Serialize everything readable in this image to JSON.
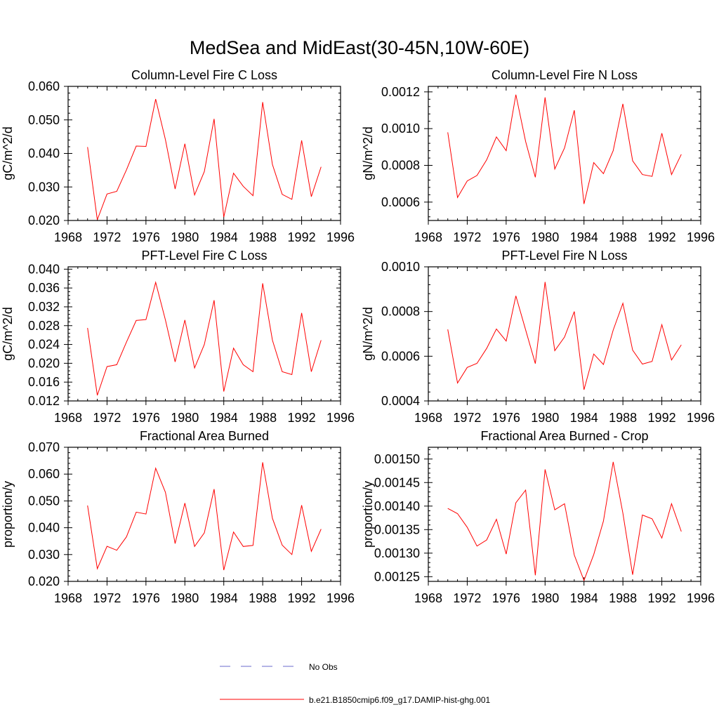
{
  "figure": {
    "title": "MedSea and MidEast(30-45N,10W-60E)"
  },
  "legend": {
    "items": [
      {
        "label": "No Obs",
        "color": "#6a6acd",
        "style": "dashed"
      },
      {
        "label": "b.e21.B1850cmip6.f09_g17.DAMIP-hist-ghg.001",
        "color": "#ff0000",
        "style": "solid"
      }
    ]
  },
  "chart_data": [
    {
      "type": "line",
      "title": "Column-Level Fire C Loss",
      "ylabel": "gC/m^2/d",
      "xlim": [
        1968,
        1996
      ],
      "xticks": [
        "1968",
        "1972",
        "1976",
        "1980",
        "1984",
        "1988",
        "1992",
        "1996"
      ],
      "ylim": [
        0.02,
        0.06
      ],
      "yticks": [
        "0.020",
        "0.030",
        "0.040",
        "0.050",
        "0.060"
      ],
      "x": [
        1970,
        1971,
        1972,
        1973,
        1974,
        1975,
        1976,
        1977,
        1978,
        1979,
        1980,
        1981,
        1982,
        1983,
        1984,
        1985,
        1986,
        1987,
        1988,
        1989,
        1990,
        1991,
        1992,
        1993,
        1994
      ],
      "series": [
        {
          "color": "#ff0000",
          "values": [
            0.0419,
            0.0202,
            0.0279,
            0.0287,
            0.0351,
            0.0422,
            0.0421,
            0.0562,
            0.0441,
            0.0294,
            0.0429,
            0.0276,
            0.0346,
            0.0503,
            0.021,
            0.0341,
            0.0302,
            0.0274,
            0.0553,
            0.0367,
            0.0278,
            0.0263,
            0.0439,
            0.0271,
            0.036
          ]
        }
      ]
    },
    {
      "type": "line",
      "title": "Column-Level Fire N Loss",
      "ylabel": "gN/m^2/d",
      "xlim": [
        1968,
        1996
      ],
      "xticks": [
        "1968",
        "1972",
        "1976",
        "1980",
        "1984",
        "1988",
        "1992",
        "1996"
      ],
      "ylim": [
        0.0005,
        0.00123
      ],
      "yticks": [
        "0.0006",
        "0.0008",
        "0.0010",
        "0.0012"
      ],
      "x": [
        1970,
        1971,
        1972,
        1973,
        1974,
        1975,
        1976,
        1977,
        1978,
        1979,
        1980,
        1981,
        1982,
        1983,
        1984,
        1985,
        1986,
        1987,
        1988,
        1989,
        1990,
        1991,
        1992,
        1993,
        1994
      ],
      "series": [
        {
          "color": "#ff0000",
          "values": [
            0.00098,
            0.000625,
            0.000715,
            0.000745,
            0.00083,
            0.000955,
            0.00088,
            0.001185,
            0.00093,
            0.000735,
            0.00117,
            0.00078,
            0.000895,
            0.0011,
            0.00059,
            0.000815,
            0.000755,
            0.00088,
            0.001135,
            0.000825,
            0.00075,
            0.00074,
            0.000975,
            0.00075,
            0.00086
          ]
        }
      ]
    },
    {
      "type": "line",
      "title": "PFT-Level Fire C Loss",
      "ylabel": "gC/m^2/d",
      "xlim": [
        1968,
        1996
      ],
      "xticks": [
        "1968",
        "1972",
        "1976",
        "1980",
        "1984",
        "1988",
        "1992",
        "1996"
      ],
      "ylim": [
        0.012,
        0.0405
      ],
      "yticks": [
        "0.012",
        "0.016",
        "0.020",
        "0.024",
        "0.028",
        "0.032",
        "0.036",
        "0.040"
      ],
      "x": [
        1970,
        1971,
        1972,
        1973,
        1974,
        1975,
        1976,
        1977,
        1978,
        1979,
        1980,
        1981,
        1982,
        1983,
        1984,
        1985,
        1986,
        1987,
        1988,
        1989,
        1990,
        1991,
        1992,
        1993,
        1994
      ],
      "series": [
        {
          "color": "#ff0000",
          "values": [
            0.0275,
            0.0132,
            0.0193,
            0.0197,
            0.0245,
            0.0291,
            0.0293,
            0.0372,
            0.0292,
            0.0203,
            0.0292,
            0.019,
            0.024,
            0.0334,
            0.014,
            0.0232,
            0.0197,
            0.0182,
            0.037,
            0.0249,
            0.0182,
            0.0176,
            0.0307,
            0.0182,
            0.0249
          ]
        }
      ]
    },
    {
      "type": "line",
      "title": "PFT-Level Fire N Loss",
      "ylabel": "gN/m^2/d",
      "xlim": [
        1968,
        1996
      ],
      "xticks": [
        "1968",
        "1972",
        "1976",
        "1980",
        "1984",
        "1988",
        "1992",
        "1996"
      ],
      "ylim": [
        0.0004,
        0.001
      ],
      "yticks": [
        "0.0004",
        "0.0006",
        "0.0008",
        "0.0010"
      ],
      "x": [
        1970,
        1971,
        1972,
        1973,
        1974,
        1975,
        1976,
        1977,
        1978,
        1979,
        1980,
        1981,
        1982,
        1983,
        1984,
        1985,
        1986,
        1987,
        1988,
        1989,
        1990,
        1991,
        1992,
        1993,
        1994
      ],
      "series": [
        {
          "color": "#ff0000",
          "values": [
            0.00072,
            0.00048,
            0.00055,
            0.000568,
            0.000635,
            0.000722,
            0.000668,
            0.00087,
            0.000718,
            0.000567,
            0.000932,
            0.000625,
            0.000686,
            0.0008,
            0.00045,
            0.00061,
            0.000563,
            0.000717,
            0.000837,
            0.000627,
            0.000565,
            0.000577,
            0.000741,
            0.000583,
            0.000651
          ]
        }
      ]
    },
    {
      "type": "line",
      "title": "Fractional Area Burned",
      "ylabel": "proportion/y",
      "xlim": [
        1968,
        1996
      ],
      "xticks": [
        "1968",
        "1972",
        "1976",
        "1980",
        "1984",
        "1988",
        "1992",
        "1996"
      ],
      "ylim": [
        0.02,
        0.07
      ],
      "yticks": [
        "0.020",
        "0.030",
        "0.040",
        "0.050",
        "0.060",
        "0.070"
      ],
      "x": [
        1970,
        1971,
        1972,
        1973,
        1974,
        1975,
        1976,
        1977,
        1978,
        1979,
        1980,
        1981,
        1982,
        1983,
        1984,
        1985,
        1986,
        1987,
        1988,
        1989,
        1990,
        1991,
        1992,
        1993,
        1994
      ],
      "series": [
        {
          "color": "#ff0000",
          "values": [
            0.0483,
            0.0247,
            0.0331,
            0.0316,
            0.0366,
            0.0458,
            0.0451,
            0.0622,
            0.0532,
            0.0341,
            0.0492,
            0.033,
            0.0381,
            0.0544,
            0.0242,
            0.0384,
            0.033,
            0.0334,
            0.0644,
            0.0435,
            0.0335,
            0.03,
            0.0484,
            0.0312,
            0.0395
          ]
        }
      ]
    },
    {
      "type": "line",
      "title": "Fractional Area Burned - Crop",
      "ylabel": "proportion/y",
      "xlim": [
        1968,
        1996
      ],
      "xticks": [
        "1968",
        "1972",
        "1976",
        "1980",
        "1984",
        "1988",
        "1992",
        "1996"
      ],
      "ylim": [
        0.00124,
        0.001525
      ],
      "yticks": [
        "0.00125",
        "0.00130",
        "0.00135",
        "0.00140",
        "0.00145",
        "0.00150"
      ],
      "x": [
        1970,
        1971,
        1972,
        1973,
        1974,
        1975,
        1976,
        1977,
        1978,
        1979,
        1980,
        1981,
        1982,
        1983,
        1984,
        1985,
        1986,
        1987,
        1988,
        1989,
        1990,
        1991,
        1992,
        1993,
        1994
      ],
      "series": [
        {
          "color": "#ff0000",
          "values": [
            0.001395,
            0.001384,
            0.001355,
            0.001315,
            0.001328,
            0.001372,
            0.001298,
            0.001407,
            0.001434,
            0.001253,
            0.001478,
            0.001392,
            0.001405,
            0.001296,
            0.001242,
            0.001297,
            0.001368,
            0.001494,
            0.001385,
            0.001254,
            0.001381,
            0.001373,
            0.001332,
            0.001405,
            0.001346
          ]
        }
      ]
    }
  ]
}
